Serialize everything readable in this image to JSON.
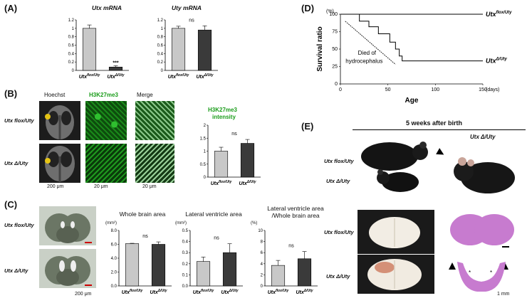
{
  "panelA": {
    "label": "(A)",
    "utx_chart_title": "Utx mRNA",
    "uty_chart_title": "Uty mRNA",
    "ns": "ns",
    "stars": "***"
  },
  "panelB": {
    "label": "(B)",
    "col_hoechst": "Hoechst",
    "col_h3k": "H3K27me3",
    "col_merge": "Merge",
    "row1": "Utx flox/Uty",
    "row2": "Utx Δ/Uty",
    "scale1": "200 μm",
    "scale2": "20 μm",
    "scale3": "20 μm",
    "chart_title_1": "H3K27me3",
    "chart_title_2": "intensity",
    "ns": "ns"
  },
  "panelC": {
    "label": "(C)",
    "row1": "Utx flox/Uty",
    "row2": "Utx Δ/Uty",
    "scale": "200 μm",
    "chart1_title": "Whole brain area",
    "chart2_title": "Lateral ventricle area",
    "chart3_title_1": "Lateral ventricle area",
    "chart3_title_2": "/Whole brain area",
    "unit1": "(mm²)",
    "unit2": "(mm²)",
    "unit3": "(%)",
    "ns": "ns"
  },
  "panelD": {
    "label": "(D)",
    "ylabel": "Survival ratio",
    "xlabel": "Age",
    "xunit": "(days)",
    "yunit": "(%)",
    "annotation_1": "Died of",
    "annotation_2": "hydrocephalus",
    "legend_top": "Utx flox/Uty",
    "legend_bottom": "Utx Δ/Uty"
  },
  "panelE": {
    "label": "(E)",
    "header": "5 weeks after birth",
    "mouse_label_right": "Utx Δ/Uty",
    "mouse_label_left_1": "Utx flox/Uty",
    "mouse_label_left_2": "Utx Δ/Uty",
    "brain_label_1": "Utx flox/Uty",
    "brain_label_2": "Utx Δ/Uty",
    "scale": "1 mm"
  },
  "chart_data": [
    {
      "id": "A-utx",
      "type": "bar",
      "title": "Utx mRNA",
      "categories": [
        "Utx flox/Uty",
        "Utx Δ/Uty"
      ],
      "values": [
        1.0,
        0.08
      ],
      "errors": [
        0.08,
        0.03
      ],
      "ylim": [
        0,
        1.2
      ],
      "yticks": [
        0,
        0.2,
        0.4,
        0.6,
        0.8,
        1,
        1.2
      ],
      "colors": [
        "#c8c8c8",
        "#3a3a3a"
      ],
      "annotation": "***"
    },
    {
      "id": "A-uty",
      "type": "bar",
      "title": "Uty mRNA",
      "categories": [
        "Utx flox/Uty",
        "Utx Δ/Uty"
      ],
      "values": [
        1.0,
        0.96
      ],
      "errors": [
        0.05,
        0.1
      ],
      "ylim": [
        0,
        1.2
      ],
      "yticks": [
        0,
        0.2,
        0.4,
        0.6,
        0.8,
        1,
        1.2
      ],
      "colors": [
        "#c8c8c8",
        "#3a3a3a"
      ],
      "annotation": "ns"
    },
    {
      "id": "B-intensity",
      "type": "bar",
      "title": "H3K27me3 intensity",
      "categories": [
        "Utx flox/Uty",
        "Utx Δ/Uty"
      ],
      "values": [
        1.0,
        1.3
      ],
      "errors": [
        0.15,
        0.15
      ],
      "ylim": [
        0,
        2
      ],
      "yticks": [
        0,
        0.5,
        1,
        1.5,
        2
      ],
      "colors": [
        "#c8c8c8",
        "#3a3a3a"
      ],
      "annotation": "ns"
    },
    {
      "id": "C-whole",
      "type": "bar",
      "title": "Whole brain area",
      "ylabel": "(mm²)",
      "categories": [
        "Utx flox/Uty",
        "Utx Δ/Uty"
      ],
      "values": [
        6.1,
        6.0
      ],
      "errors": [
        0.05,
        0.35
      ],
      "ylim": [
        0,
        8
      ],
      "yticks": [
        0,
        2.0,
        4.0,
        6.0,
        8.0
      ],
      "colors": [
        "#c8c8c8",
        "#3a3a3a"
      ],
      "annotation": "ns"
    },
    {
      "id": "C-ventricle",
      "type": "bar",
      "title": "Lateral ventricle area",
      "ylabel": "(mm²)",
      "categories": [
        "Utx flox/Uty",
        "Utx Δ/Uty"
      ],
      "values": [
        0.22,
        0.3
      ],
      "errors": [
        0.04,
        0.08
      ],
      "ylim": [
        0,
        0.5
      ],
      "yticks": [
        0,
        0.1,
        0.2,
        0.3,
        0.4,
        0.5
      ],
      "colors": [
        "#c8c8c8",
        "#3a3a3a"
      ],
      "annotation": "ns"
    },
    {
      "id": "C-ratio",
      "type": "bar",
      "title": "Lateral ventricle area /Whole brain area",
      "ylabel": "(%)",
      "categories": [
        "Utx flox/Uty",
        "Utx Δ/Uty"
      ],
      "values": [
        3.7,
        4.9
      ],
      "errors": [
        0.9,
        1.3
      ],
      "ylim": [
        0,
        10
      ],
      "yticks": [
        0,
        2,
        4,
        6,
        8,
        10
      ],
      "colors": [
        "#c8c8c8",
        "#3a3a3a"
      ],
      "annotation": "ns"
    },
    {
      "id": "D-survival",
      "type": "line",
      "title": "",
      "xlabel": "Age",
      "ylabel": "Survival ratio",
      "xlim": [
        0,
        150
      ],
      "ylim": [
        0,
        100
      ],
      "xticks": [
        0,
        50,
        100,
        150
      ],
      "yticks": [
        0,
        25,
        50,
        75,
        100
      ],
      "series": [
        {
          "name": "Utx flox/Uty",
          "x": [
            0,
            150
          ],
          "y": [
            100,
            100
          ]
        },
        {
          "name": "Utx Δ/Uty",
          "x": [
            0,
            20,
            20,
            30,
            30,
            40,
            40,
            52,
            52,
            58,
            58,
            62,
            62,
            65,
            65,
            150
          ],
          "y": [
            100,
            100,
            90,
            90,
            82,
            82,
            72,
            72,
            60,
            60,
            50,
            50,
            40,
            40,
            33,
            33
          ]
        }
      ]
    }
  ]
}
